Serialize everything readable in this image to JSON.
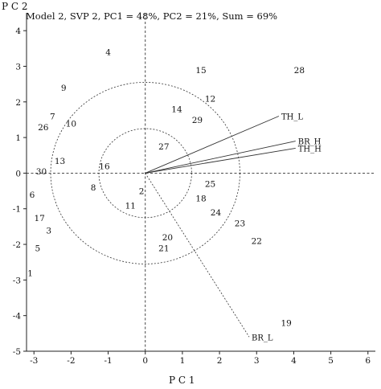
{
  "chart_data": {
    "type": "scatter",
    "title": "Model 2, SVP 2, PC1 = 48%, PC2 = 21%, Sum = 69%",
    "xlabel": "P C 1",
    "ylabel": "P C 2",
    "xlim": [
      -3.2,
      6.2
    ],
    "ylim": [
      -5,
      4.5
    ],
    "xticks": [
      "-3",
      "-2",
      "-1",
      "0",
      "1",
      "2",
      "3",
      "4",
      "5",
      "6"
    ],
    "yticks": [
      "4",
      "3",
      "2",
      "1",
      "0",
      "-1",
      "-2",
      "-3",
      "-4",
      "-5"
    ],
    "points": [
      {
        "label": "1",
        "x": -3.1,
        "y": -2.8
      },
      {
        "label": "2",
        "x": -0.1,
        "y": -0.5
      },
      {
        "label": "3",
        "x": -2.6,
        "y": -1.6
      },
      {
        "label": "4",
        "x": -1.0,
        "y": 3.4
      },
      {
        "label": "5",
        "x": -2.9,
        "y": -2.1
      },
      {
        "label": "6",
        "x": -3.05,
        "y": -0.6
      },
      {
        "label": "7",
        "x": -2.5,
        "y": 1.6
      },
      {
        "label": "8",
        "x": -1.4,
        "y": -0.4
      },
      {
        "label": "9",
        "x": -2.2,
        "y": 2.4
      },
      {
        "label": "10",
        "x": -2.0,
        "y": 1.4
      },
      {
        "label": "11",
        "x": -0.4,
        "y": -0.9
      },
      {
        "label": "12",
        "x": 1.75,
        "y": 2.1
      },
      {
        "label": "13",
        "x": -2.3,
        "y": 0.35
      },
      {
        "label": "14",
        "x": 0.85,
        "y": 1.8
      },
      {
        "label": "15",
        "x": 1.5,
        "y": 2.9
      },
      {
        "label": "16",
        "x": -1.1,
        "y": 0.2
      },
      {
        "label": "17",
        "x": -2.85,
        "y": -1.25
      },
      {
        "label": "18",
        "x": 1.5,
        "y": -0.7
      },
      {
        "label": "19",
        "x": 3.8,
        "y": -4.2
      },
      {
        "label": "20",
        "x": 0.6,
        "y": -1.8
      },
      {
        "label": "21",
        "x": 0.5,
        "y": -2.1
      },
      {
        "label": "22",
        "x": 3.0,
        "y": -1.9
      },
      {
        "label": "23",
        "x": 2.55,
        "y": -1.4
      },
      {
        "label": "24",
        "x": 1.9,
        "y": -1.1
      },
      {
        "label": "25",
        "x": 1.75,
        "y": -0.3
      },
      {
        "label": "26",
        "x": -2.75,
        "y": 1.3
      },
      {
        "label": "27",
        "x": 0.5,
        "y": 0.75
      },
      {
        "label": "28",
        "x": 4.15,
        "y": 2.9
      },
      {
        "label": "29",
        "x": 1.4,
        "y": 1.5
      },
      {
        "label": "30",
        "x": -2.8,
        "y": 0.05
      }
    ],
    "vectors": [
      {
        "label": "TH_L",
        "x": 3.6,
        "y": 1.6
      },
      {
        "label": "BR_H",
        "x": 4.05,
        "y": 0.9
      },
      {
        "label": "TH_H",
        "x": 4.05,
        "y": 0.7
      },
      {
        "label": "BR_L",
        "x": 2.8,
        "y": -4.6
      }
    ],
    "circles": [
      {
        "radius": 1.25
      },
      {
        "radius": 2.55
      }
    ],
    "grid": false,
    "legend": "none"
  }
}
